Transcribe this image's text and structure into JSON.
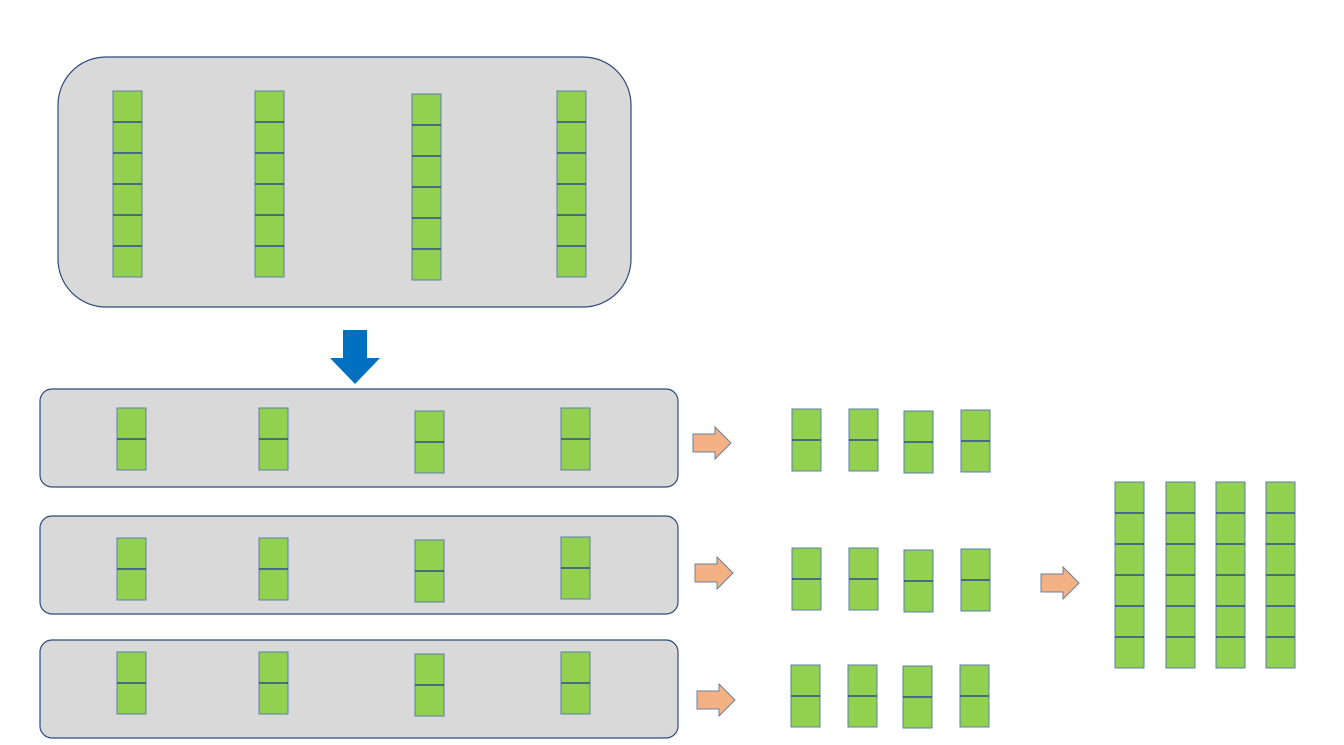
{
  "colors": {
    "background": "#ffffff",
    "panel_fill": "#d9d9d9",
    "panel_border": "#2f4a7a",
    "block_fill": "#92d050",
    "block_border": "#5a7fa8",
    "block_divider": "#2f4a8f",
    "down_arrow": "#0070c0",
    "right_arrow_fill": "#f4b183",
    "right_arrow_border": "#6a7fa0"
  },
  "icons": {
    "down_arrow": "arrow-down-icon",
    "right_arrow": "arrow-right-icon"
  },
  "diagram": {
    "source_panel": {
      "columns": 4,
      "blocks_per_column": 6
    },
    "split_panels": [
      {
        "columns": 4,
        "blocks_per_column": 2
      },
      {
        "columns": 4,
        "blocks_per_column": 2
      },
      {
        "columns": 4,
        "blocks_per_column": 2
      }
    ],
    "intermediate_groups": [
      {
        "columns": 4,
        "blocks_per_column": 2
      },
      {
        "columns": 4,
        "blocks_per_column": 2
      },
      {
        "columns": 4,
        "blocks_per_column": 2
      }
    ],
    "result_group": {
      "columns": 4,
      "blocks_per_column": 6
    }
  }
}
